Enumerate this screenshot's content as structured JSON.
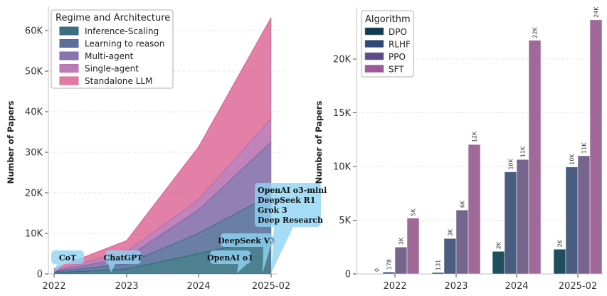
{
  "chart_data": [
    {
      "type": "area",
      "stacked": true,
      "title": "",
      "xlabel": "",
      "ylabel": "Number of Papers",
      "categories": [
        "2022",
        "2023",
        "2024",
        "2025-02"
      ],
      "ylim": [
        0,
        65000
      ],
      "yticks": [
        0,
        10000,
        20000,
        30000,
        40000,
        50000,
        60000
      ],
      "ytick_labels": [
        "0",
        "10K",
        "20K",
        "30K",
        "40K",
        "50K",
        "60K"
      ],
      "grid": "y-dashed",
      "legend": {
        "title": "Regime and Architecture",
        "placement": "top-left"
      },
      "series": [
        {
          "name": "Inference-Scaling",
          "color": "#2f6b7c",
          "cumulative": [
            300,
            1200,
            5000,
            9000
          ]
        },
        {
          "name": "Learning to reason",
          "color": "#4f6a94",
          "cumulative": [
            500,
            2500,
            10000,
            19500
          ]
        },
        {
          "name": "Multi-agent",
          "color": "#7f6aa8",
          "cumulative": [
            700,
            4000,
            15800,
            32500
          ]
        },
        {
          "name": "Single-agent",
          "color": "#b56fae",
          "cumulative": [
            900,
            5500,
            18300,
            38300
          ]
        },
        {
          "name": "Standalone LLM",
          "color": "#dd6a98",
          "cumulative": [
            1300,
            8200,
            31300,
            63200
          ]
        }
      ],
      "annotations": [
        {
          "text": [
            "CoT"
          ],
          "x": "2022"
        },
        {
          "text": [
            "ChatGPT"
          ],
          "x": "2022-11"
        },
        {
          "text": [
            "OpenAI o1"
          ],
          "x": "2024-09"
        },
        {
          "text": [
            "DeepSeek V3"
          ],
          "x": "2024-12"
        },
        {
          "text": [
            "OpenAI o3-mini",
            "DeepSeek R1",
            "Grok 3",
            "Deep Research"
          ],
          "x": "2025-02"
        }
      ]
    },
    {
      "type": "bar",
      "title": "",
      "xlabel": "",
      "ylabel": "Number of Papers",
      "categories": [
        "2022",
        "2023",
        "2024",
        "2025-02"
      ],
      "ylim": [
        0,
        25000
      ],
      "yticks": [
        0,
        5000,
        10000,
        15000,
        20000
      ],
      "ytick_labels": [
        "0",
        "5K",
        "10K",
        "15K",
        "20K"
      ],
      "grid": "y-dashed",
      "legend": {
        "title": "Algorithm",
        "placement": "top-left"
      },
      "series": [
        {
          "name": "DPO",
          "color": "#1f4e5f",
          "values": [
            0,
            131,
            2100,
            2300
          ],
          "labels": [
            "0",
            "131",
            "2K",
            "2K"
          ]
        },
        {
          "name": "RLHF",
          "color": "#4a5c80",
          "values": [
            178,
            3300,
            9500,
            9950
          ],
          "labels": [
            "178",
            "3K",
            "10K",
            "10K"
          ]
        },
        {
          "name": "PPO",
          "color": "#76668e",
          "values": [
            2500,
            5950,
            10650,
            11000
          ],
          "labels": [
            "3K",
            "6K",
            "11K",
            "11K"
          ]
        },
        {
          "name": "SFT",
          "color": "#a06a98",
          "values": [
            5200,
            12050,
            21750,
            23650
          ],
          "labels": [
            "5K",
            "12K",
            "22K",
            "24K"
          ]
        }
      ]
    }
  ],
  "legend_swatch_colors": {
    "left": [
      "#3c6e7e",
      "#5d709c",
      "#8a74b0",
      "#b97db6",
      "#e07aa2"
    ],
    "right": [
      "#0f3b53",
      "#2e4a7a",
      "#5e4b8c",
      "#a0589b"
    ]
  },
  "annotation_color": "#8fd3f4"
}
